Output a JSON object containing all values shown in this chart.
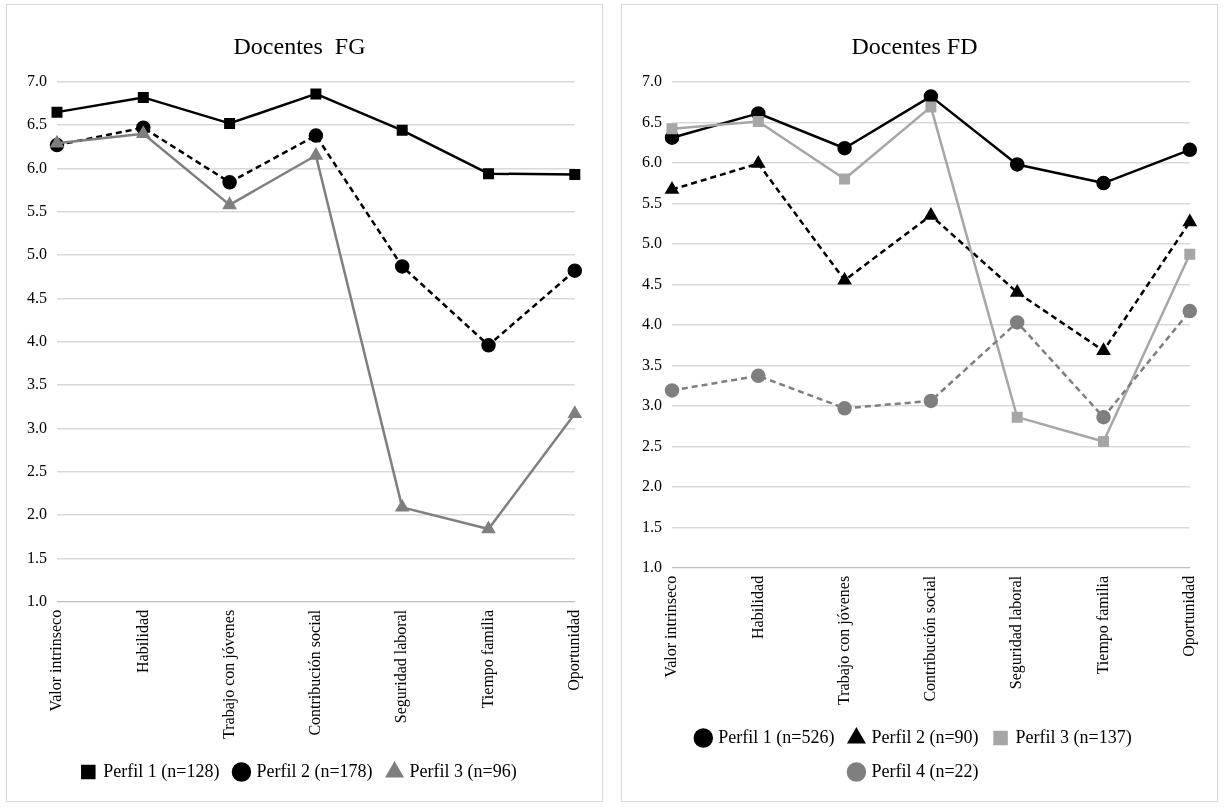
{
  "chart_data": [
    {
      "type": "line",
      "title": "Docentes  FG",
      "categories": [
        "Valor intrinseco",
        "Habilidad",
        "Trabajo con jóvenes",
        "Contribución social",
        "Seguridad laboral",
        "Tiempo familia",
        "Oportunidad"
      ],
      "series": [
        {
          "name": "Perfil 1 (n=128)",
          "color": "#000000",
          "marker": "square",
          "line_style": "solid",
          "values": [
            6.65,
            6.82,
            6.52,
            6.86,
            6.44,
            5.94,
            5.93
          ]
        },
        {
          "name": "Perfil 2 (n=178)",
          "color": "#000000",
          "marker": "circle",
          "line_style": "dashed",
          "values": [
            6.27,
            6.47,
            5.84,
            6.38,
            4.87,
            3.96,
            4.82
          ]
        },
        {
          "name": "Perfil 3 (n=96)",
          "color": "#7f7f7f",
          "marker": "triangle",
          "line_style": "solid",
          "values": [
            6.29,
            6.4,
            5.58,
            6.15,
            2.09,
            1.84,
            3.17
          ]
        }
      ],
      "ylim": [
        1,
        7
      ],
      "yticks": [
        {
          "value": 1,
          "label": "1.0"
        },
        {
          "value": 1.5,
          "label": "1.5"
        },
        {
          "value": 2,
          "label": "2.0"
        },
        {
          "value": 2.5,
          "label": "2.5"
        },
        {
          "value": 3,
          "label": "3.0"
        },
        {
          "value": 3.5,
          "label": "3.5"
        },
        {
          "value": 4,
          "label": "4.0"
        },
        {
          "value": 4.5,
          "label": "4.5"
        },
        {
          "value": 5,
          "label": "5.0"
        },
        {
          "value": 5.5,
          "label": "5.5"
        },
        {
          "value": 6,
          "label": "6.0"
        },
        {
          "value": 6.5,
          "label": "6.5"
        },
        {
          "value": 7,
          "label": "7.0"
        }
      ],
      "grid": "y",
      "legend": "bottom"
    },
    {
      "type": "line",
      "title": "Docentes FD",
      "categories": [
        "Valor intrinseco",
        "Habilidad",
        "Trabajo con jóvenes",
        "Contribución social",
        "Seguridad laboral",
        "Tiempo familia",
        "Oportunidad"
      ],
      "series": [
        {
          "name": "Perfil 1 (n=526)",
          "color": "#000000",
          "marker": "circle",
          "line_style": "solid",
          "values": [
            6.31,
            6.61,
            6.18,
            6.82,
            5.98,
            5.75,
            6.16
          ]
        },
        {
          "name": "Perfil 2 (n=90)",
          "color": "#000000",
          "marker": "triangle",
          "line_style": "dashed",
          "values": [
            5.67,
            5.99,
            4.55,
            5.35,
            4.4,
            3.68,
            5.27
          ]
        },
        {
          "name": "Perfil 3 (n=137)",
          "color": "#a6a6a6",
          "marker": "square",
          "line_style": "solid",
          "values": [
            6.42,
            6.51,
            5.8,
            6.69,
            2.86,
            2.56,
            4.87
          ]
        },
        {
          "name": "Perfil 4 (n=22)",
          "color": "#7f7f7f",
          "marker": "circle",
          "line_style": "dashed",
          "values": [
            3.19,
            3.37,
            2.97,
            3.06,
            4.03,
            2.86,
            4.17
          ]
        }
      ],
      "ylim": [
        1,
        7
      ],
      "yticks": [
        {
          "value": 1,
          "label": "1.0"
        },
        {
          "value": 1.5,
          "label": "1.5"
        },
        {
          "value": 2,
          "label": "2.0"
        },
        {
          "value": 2.5,
          "label": "2.5"
        },
        {
          "value": 3,
          "label": "3.0"
        },
        {
          "value": 3.5,
          "label": "3.5"
        },
        {
          "value": 4,
          "label": "4.0"
        },
        {
          "value": 4.5,
          "label": "4.5"
        },
        {
          "value": 5,
          "label": "5.0"
        },
        {
          "value": 5.5,
          "label": "5.5"
        },
        {
          "value": 6,
          "label": "6.0"
        },
        {
          "value": 6.5,
          "label": "6.5"
        },
        {
          "value": 7,
          "label": "7.0"
        }
      ],
      "grid": "y",
      "legend": "bottom"
    }
  ]
}
